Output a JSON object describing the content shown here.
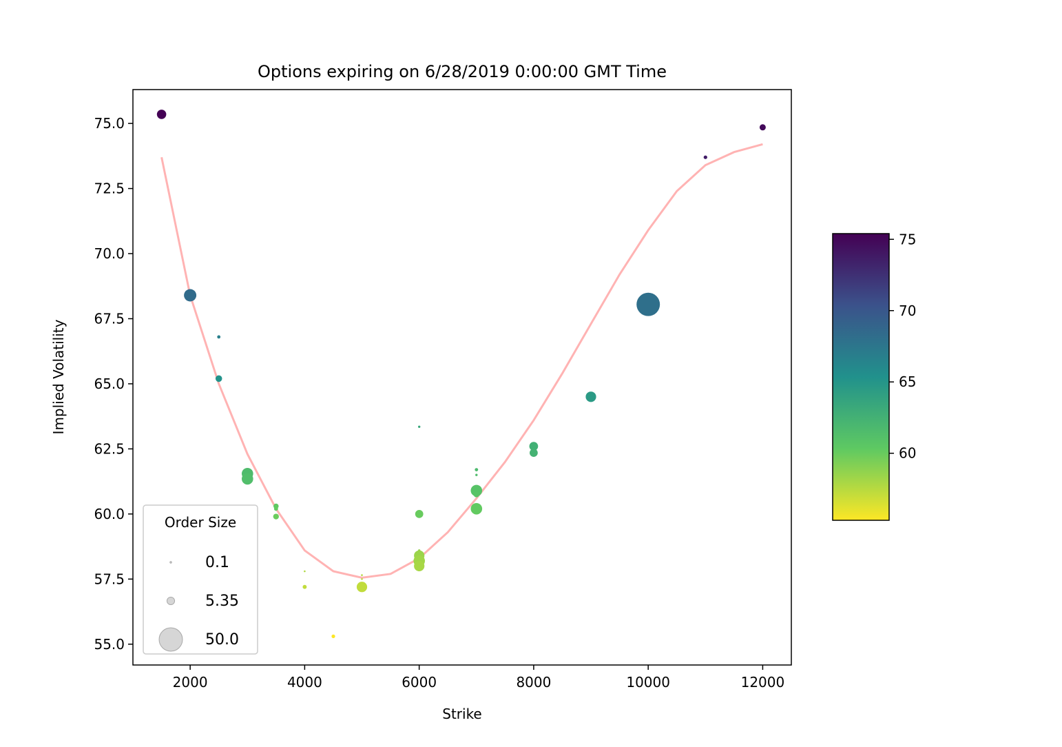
{
  "chart_data": {
    "type": "scatter",
    "title": "Options expiring on 6/28/2019 0:00:00 GMT Time",
    "xlabel": "Strike",
    "ylabel": "Implied Volatility",
    "xlim": [
      1000,
      12500
    ],
    "ylim": [
      54.2,
      76.3
    ],
    "xticks": [
      2000,
      4000,
      6000,
      8000,
      10000,
      12000
    ],
    "xtick_labels": [
      "2000",
      "4000",
      "6000",
      "8000",
      "10000",
      "12000"
    ],
    "yticks": [
      55.0,
      57.5,
      60.0,
      62.5,
      65.0,
      67.5,
      70.0,
      72.5,
      75.0
    ],
    "ytick_labels": [
      "55.0",
      "57.5",
      "60.0",
      "62.5",
      "65.0",
      "67.5",
      "70.0",
      "72.5",
      "75.0"
    ],
    "grid": false,
    "colorbar": {
      "range": [
        55.3,
        75.4
      ],
      "ticks": [
        60,
        65,
        70,
        75
      ],
      "tick_labels": [
        "60",
        "65",
        "70",
        "75"
      ],
      "colormap": "viridis_r"
    },
    "legend": {
      "title": "Order Size",
      "placement": "lower-left",
      "entries": [
        {
          "label": "0.1",
          "size": 0.1
        },
        {
          "label": "5.35",
          "size": 5.35
        },
        {
          "label": "50.0",
          "size": 50.0
        }
      ]
    },
    "points": [
      {
        "x": 1500,
        "y": 75.35,
        "size": 8
      },
      {
        "x": 2000,
        "y": 68.4,
        "size": 14
      },
      {
        "x": 2500,
        "y": 66.8,
        "size": 1
      },
      {
        "x": 2500,
        "y": 65.2,
        "size": 4
      },
      {
        "x": 3000,
        "y": 61.55,
        "size": 12
      },
      {
        "x": 3000,
        "y": 61.35,
        "size": 12
      },
      {
        "x": 3500,
        "y": 60.3,
        "size": 2.5
      },
      {
        "x": 3500,
        "y": 60.2,
        "size": 1.5
      },
      {
        "x": 3500,
        "y": 59.9,
        "size": 3
      },
      {
        "x": 4000,
        "y": 57.8,
        "size": 0.3
      },
      {
        "x": 4000,
        "y": 57.2,
        "size": 1.5
      },
      {
        "x": 4500,
        "y": 55.3,
        "size": 1.2
      },
      {
        "x": 5000,
        "y": 57.65,
        "size": 0.3
      },
      {
        "x": 5000,
        "y": 57.5,
        "size": 0.3
      },
      {
        "x": 5000,
        "y": 57.2,
        "size": 10
      },
      {
        "x": 6000,
        "y": 63.35,
        "size": 0.5
      },
      {
        "x": 6000,
        "y": 60.0,
        "size": 6
      },
      {
        "x": 6000,
        "y": 58.6,
        "size": 0.5
      },
      {
        "x": 6000,
        "y": 58.4,
        "size": 10
      },
      {
        "x": 6000,
        "y": 58.2,
        "size": 12
      },
      {
        "x": 6000,
        "y": 58.0,
        "size": 10
      },
      {
        "x": 7000,
        "y": 61.7,
        "size": 1
      },
      {
        "x": 7000,
        "y": 61.5,
        "size": 0.5
      },
      {
        "x": 7000,
        "y": 60.9,
        "size": 12
      },
      {
        "x": 7000,
        "y": 60.75,
        "size": 3
      },
      {
        "x": 7000,
        "y": 60.2,
        "size": 12
      },
      {
        "x": 8000,
        "y": 62.6,
        "size": 7
      },
      {
        "x": 8000,
        "y": 62.35,
        "size": 6
      },
      {
        "x": 9000,
        "y": 64.5,
        "size": 10
      },
      {
        "x": 10000,
        "y": 68.05,
        "size": 50
      },
      {
        "x": 11000,
        "y": 73.7,
        "size": 1.2
      },
      {
        "x": 12000,
        "y": 74.85,
        "size": 3.5
      }
    ],
    "fit_curve": {
      "color": "#ffb3b3",
      "x": [
        1500,
        2000,
        2500,
        3000,
        3500,
        4000,
        4500,
        5000,
        5500,
        6000,
        6500,
        7000,
        7500,
        8000,
        8500,
        9000,
        9500,
        10000,
        10500,
        11000,
        11500,
        12000
      ],
      "y": [
        73.7,
        68.4,
        65.0,
        62.3,
        60.2,
        58.6,
        57.8,
        57.55,
        57.7,
        58.3,
        59.3,
        60.6,
        62.0,
        63.6,
        65.4,
        67.3,
        69.2,
        70.9,
        72.4,
        73.4,
        73.9,
        74.2
      ]
    }
  }
}
